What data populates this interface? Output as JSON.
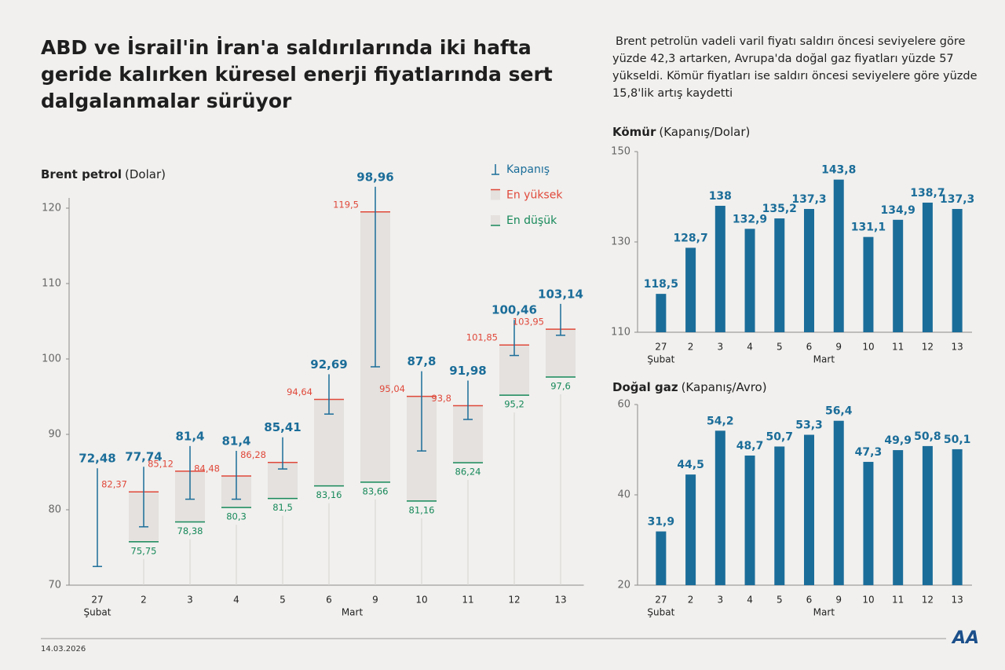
{
  "header": {
    "title": "ABD ve İsrail'in İran'a saldırılarında iki hafta geride kalırken küresel enerji fiyatlarında sert dalgalanmalar sürüyor",
    "description": "Brent petrolün vadeli varil fiyatı saldırı öncesi seviyelere göre yüzde 42,3 artarken, Avrupa'da doğal gaz fiyatları yüzde 57 yükseldi. Kömür fiyatları ise saldırı öncesi seviyelere göre yüzde 15,8'lik artış kaydetti"
  },
  "chart_data": [
    {
      "type": "range",
      "title": "Brent petrol",
      "subtitle": "(Dolar)",
      "categories": [
        "27",
        "2",
        "3",
        "4",
        "5",
        "6",
        "9",
        "10",
        "11",
        "12",
        "13"
      ],
      "x_group_labels": [
        "Şubat",
        "Mart"
      ],
      "box_color": "#e4e1de",
      "series": [
        {
          "name": "Kapanış",
          "color": "#1b6d99",
          "values": [
            72.48,
            77.74,
            81.4,
            81.4,
            85.41,
            92.69,
            98.96,
            87.8,
            91.98,
            100.46,
            103.14
          ],
          "value_labels": [
            "72,48",
            "77,74",
            "81,4",
            "81,4",
            "85,41",
            "92,69",
            "98,96",
            "87,8",
            "91,98",
            "100,46",
            "103,14"
          ]
        },
        {
          "name": "En yüksek",
          "color": "#e0483a",
          "values": [
            null,
            82.37,
            85.12,
            84.48,
            86.28,
            94.64,
            119.5,
            95.04,
            93.8,
            101.85,
            103.95
          ],
          "value_labels": [
            null,
            "82,37",
            "85,12",
            "84,48",
            "86,28",
            "94,64",
            "119,5",
            "95,04",
            "93,8",
            "101,85",
            "103,95"
          ]
        },
        {
          "name": "En düşük",
          "color": "#17895a",
          "values": [
            null,
            75.75,
            78.38,
            80.3,
            81.5,
            83.16,
            83.66,
            81.16,
            86.24,
            95.2,
            97.6
          ],
          "value_labels": [
            null,
            "75,75",
            "78,38",
            "80,3",
            "81,5",
            "83,16",
            "83,66",
            "81,16",
            "86,24",
            "95,2",
            "97,6"
          ]
        }
      ],
      "ylim": [
        70,
        120
      ],
      "yticks": [
        70,
        80,
        90,
        100,
        110,
        120
      ]
    },
    {
      "type": "bar",
      "title": "Kömür",
      "subtitle": "(Kapanış/Dolar)",
      "categories": [
        "27",
        "2",
        "3",
        "4",
        "5",
        "6",
        "9",
        "10",
        "11",
        "12",
        "13"
      ],
      "x_group_labels": [
        "Şubat",
        "Mart"
      ],
      "color": "#1b6d99",
      "values": [
        118.5,
        128.7,
        138,
        132.9,
        135.2,
        137.3,
        143.8,
        131.1,
        134.9,
        138.7,
        137.3
      ],
      "value_labels": [
        "118,5",
        "128,7",
        "138",
        "132,9",
        "135,2",
        "137,3",
        "143,8",
        "131,1",
        "134,9",
        "138,7",
        "137,3"
      ],
      "ylim": [
        110,
        150
      ],
      "yticks": [
        110,
        130,
        150
      ]
    },
    {
      "type": "bar",
      "title": "Doğal gaz",
      "subtitle": "(Kapanış/Avro)",
      "categories": [
        "27",
        "2",
        "3",
        "4",
        "5",
        "6",
        "9",
        "10",
        "11",
        "12",
        "13"
      ],
      "x_group_labels": [
        "Şubat",
        "Mart"
      ],
      "color": "#1b6d99",
      "values": [
        31.9,
        44.5,
        54.2,
        48.7,
        50.7,
        53.3,
        56.4,
        47.3,
        49.9,
        50.8,
        50.1
      ],
      "value_labels": [
        "31,9",
        "44,5",
        "54,2",
        "48,7",
        "50,7",
        "53,3",
        "56,4",
        "47,3",
        "49,9",
        "50,8",
        "50,1"
      ],
      "ylim": [
        20,
        60
      ],
      "yticks": [
        20,
        40,
        60
      ]
    }
  ],
  "footer": {
    "date": "14.03.2026",
    "logo": "AA"
  }
}
